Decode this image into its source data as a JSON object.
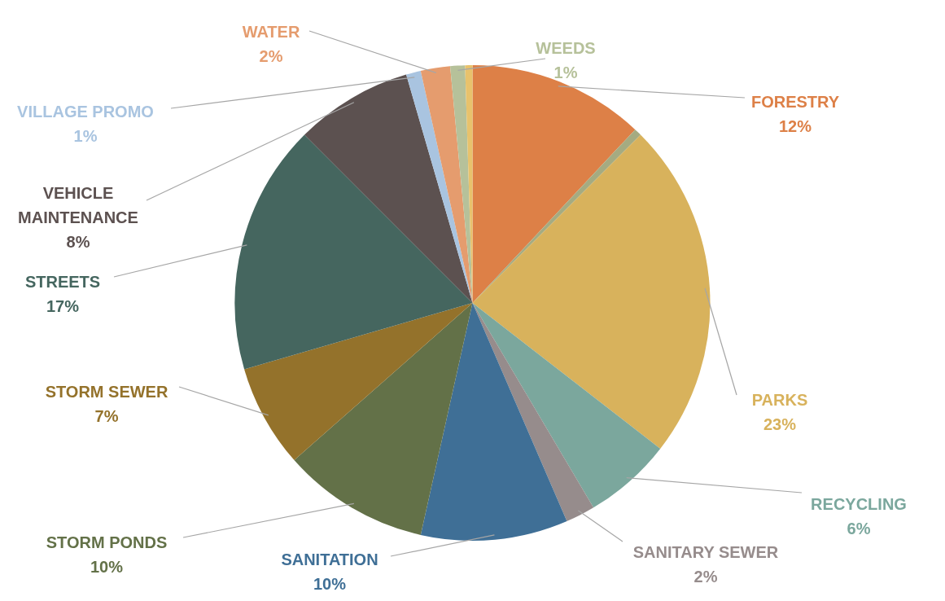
{
  "chart_data": {
    "type": "pie",
    "categories": [
      "FORESTRY",
      null,
      "PARKS",
      "RECYCLING",
      "SANITARY SEWER",
      "SANITATION",
      "STORM PONDS",
      "STORM SEWER",
      "STREETS",
      "VEHICLE MAINTENANCE",
      "VILLAGE PROMO",
      "WATER",
      "WEEDS",
      null
    ],
    "values": [
      12,
      0.5,
      23,
      6,
      2,
      10,
      10,
      7,
      17,
      8,
      1,
      2,
      1,
      0.5
    ],
    "value_labels": [
      "12%",
      null,
      "23%",
      "6%",
      "2%",
      "10%",
      "10%",
      "7%",
      "17%",
      "8%",
      "1%",
      "2%",
      "1%",
      null
    ],
    "colors": [
      "#dd8047",
      "#a5ab81",
      "#d8b25c",
      "#7ba79d",
      "#968c8c",
      "#3f6f96",
      "#637148",
      "#94722b",
      "#45665f",
      "#5c5150",
      "#a9c4e0",
      "#e59c6e",
      "#b6c19a",
      "#e8c26c"
    ],
    "legend": false
  }
}
